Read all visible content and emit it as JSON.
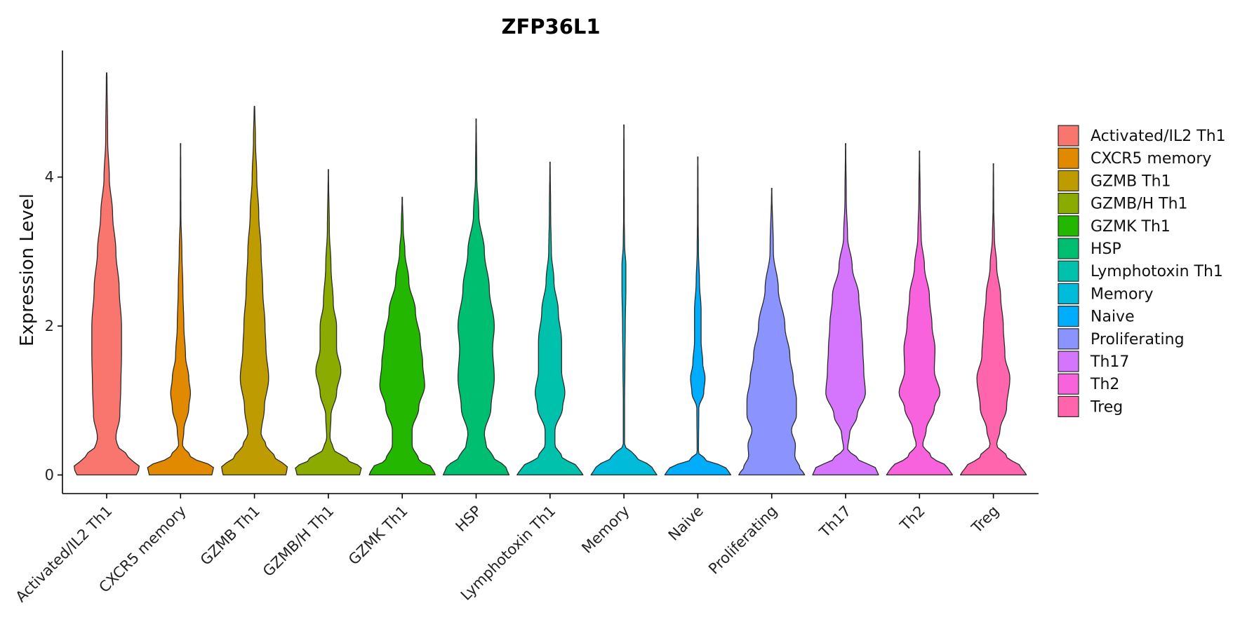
{
  "chart_data": {
    "type": "violin",
    "title": "ZFP36L1",
    "xlabel": "",
    "ylabel": "Expression Level",
    "ylim": [
      -0.25,
      5.7
    ],
    "y_ticks": [
      0,
      2,
      4
    ],
    "y_tick_labels": [
      "0",
      "2",
      "4"
    ],
    "grid": false,
    "legend_position": "right",
    "categories": [
      "Activated/IL2 Th1",
      "CXCR5 memory",
      "GZMB Th1",
      "GZMB/H Th1",
      "GZMK Th1",
      "HSP",
      "Lymphotoxin Th1",
      "Memory",
      "Naive",
      "Proliferating",
      "Th17",
      "Th2",
      "Treg"
    ],
    "colors": [
      "#F8766D",
      "#E18A00",
      "#BE9C00",
      "#8CAB00",
      "#24B700",
      "#00BE70",
      "#00C1AB",
      "#00BBDA",
      "#00ACFC",
      "#8B93FF",
      "#D575FE",
      "#F962DD",
      "#FF65AC"
    ],
    "max_values": [
      5.4,
      4.45,
      4.95,
      4.1,
      3.73,
      4.78,
      4.2,
      4.7,
      4.27,
      3.85,
      4.45,
      4.35,
      4.18
    ],
    "density_profiles": [
      [
        [
          0,
          0.9
        ],
        [
          0.1,
          1
        ],
        [
          0.25,
          0.65
        ],
        [
          0.4,
          0.32
        ],
        [
          0.5,
          0.28
        ],
        [
          0.8,
          0.4
        ],
        [
          1.2,
          0.43
        ],
        [
          1.6,
          0.45
        ],
        [
          2,
          0.45
        ],
        [
          2.5,
          0.38
        ],
        [
          3,
          0.28
        ],
        [
          3.5,
          0.18
        ],
        [
          4,
          0.08
        ],
        [
          4.5,
          0.03
        ],
        [
          5.4,
          0.01
        ]
      ],
      [
        [
          0,
          0.95
        ],
        [
          0.1,
          1
        ],
        [
          0.25,
          0.3
        ],
        [
          0.4,
          0.06
        ],
        [
          0.6,
          0.1
        ],
        [
          0.9,
          0.25
        ],
        [
          1.1,
          0.3
        ],
        [
          1.3,
          0.25
        ],
        [
          1.6,
          0.15
        ],
        [
          2,
          0.1
        ],
        [
          2.5,
          0.07
        ],
        [
          3,
          0.04
        ],
        [
          3.5,
          0.01
        ],
        [
          4.45,
          0.005
        ]
      ],
      [
        [
          0,
          0.95
        ],
        [
          0.1,
          1
        ],
        [
          0.25,
          0.6
        ],
        [
          0.4,
          0.35
        ],
        [
          0.55,
          0.2
        ],
        [
          0.9,
          0.3
        ],
        [
          1.3,
          0.43
        ],
        [
          1.7,
          0.35
        ],
        [
          2,
          0.32
        ],
        [
          2.5,
          0.25
        ],
        [
          3,
          0.2
        ],
        [
          3.5,
          0.13
        ],
        [
          4,
          0.07
        ],
        [
          4.5,
          0.03
        ],
        [
          4.95,
          0.01
        ]
      ],
      [
        [
          0,
          0.95
        ],
        [
          0.1,
          1
        ],
        [
          0.2,
          0.6
        ],
        [
          0.35,
          0.15
        ],
        [
          0.5,
          0.05
        ],
        [
          0.8,
          0.08
        ],
        [
          1.1,
          0.25
        ],
        [
          1.4,
          0.38
        ],
        [
          1.7,
          0.25
        ],
        [
          2,
          0.25
        ],
        [
          2.3,
          0.15
        ],
        [
          2.8,
          0.08
        ],
        [
          3.3,
          0.03
        ],
        [
          4.1,
          0.005
        ]
      ],
      [
        [
          0,
          1
        ],
        [
          0.1,
          0.9
        ],
        [
          0.2,
          0.5
        ],
        [
          0.4,
          0.3
        ],
        [
          0.6,
          0.3
        ],
        [
          0.9,
          0.5
        ],
        [
          1.2,
          0.68
        ],
        [
          1.5,
          0.62
        ],
        [
          1.8,
          0.55
        ],
        [
          2.2,
          0.4
        ],
        [
          2.6,
          0.2
        ],
        [
          3,
          0.08
        ],
        [
          3.3,
          0.03
        ],
        [
          3.73,
          0.005
        ]
      ],
      [
        [
          0,
          1
        ],
        [
          0.1,
          0.9
        ],
        [
          0.25,
          0.5
        ],
        [
          0.4,
          0.3
        ],
        [
          0.55,
          0.25
        ],
        [
          0.9,
          0.45
        ],
        [
          1.3,
          0.55
        ],
        [
          1.7,
          0.5
        ],
        [
          2,
          0.55
        ],
        [
          2.5,
          0.4
        ],
        [
          3,
          0.25
        ],
        [
          3.5,
          0.08
        ],
        [
          4,
          0.02
        ],
        [
          4.78,
          0.005
        ]
      ],
      [
        [
          0,
          1
        ],
        [
          0.1,
          0.85
        ],
        [
          0.25,
          0.35
        ],
        [
          0.4,
          0.15
        ],
        [
          0.6,
          0.15
        ],
        [
          0.9,
          0.38
        ],
        [
          1.1,
          0.45
        ],
        [
          1.4,
          0.35
        ],
        [
          1.8,
          0.35
        ],
        [
          2.2,
          0.25
        ],
        [
          2.6,
          0.12
        ],
        [
          3,
          0.04
        ],
        [
          3.5,
          0.02
        ],
        [
          4.2,
          0.005
        ]
      ],
      [
        [
          0,
          1
        ],
        [
          0.1,
          0.85
        ],
        [
          0.25,
          0.35
        ],
        [
          0.4,
          0.02
        ],
        [
          1,
          0.02
        ],
        [
          1.5,
          0.03
        ],
        [
          2,
          0.04
        ],
        [
          2.5,
          0.06
        ],
        [
          2.8,
          0.06
        ],
        [
          3.1,
          0.02
        ],
        [
          3.5,
          0.01
        ],
        [
          4.7,
          0.005
        ]
      ],
      [
        [
          0,
          1
        ],
        [
          0.1,
          0.85
        ],
        [
          0.2,
          0.25
        ],
        [
          0.3,
          0.02
        ],
        [
          0.9,
          0.03
        ],
        [
          1.1,
          0.18
        ],
        [
          1.3,
          0.22
        ],
        [
          1.5,
          0.15
        ],
        [
          1.8,
          0.1
        ],
        [
          2.2,
          0.1
        ],
        [
          2.6,
          0.05
        ],
        [
          3,
          0.02
        ],
        [
          3.5,
          0.01
        ],
        [
          4.27,
          0.005
        ]
      ],
      [
        [
          0,
          1
        ],
        [
          0.1,
          0.85
        ],
        [
          0.25,
          0.7
        ],
        [
          0.4,
          0.72
        ],
        [
          0.6,
          0.6
        ],
        [
          0.8,
          0.75
        ],
        [
          1,
          0.75
        ],
        [
          1.3,
          0.65
        ],
        [
          1.6,
          0.55
        ],
        [
          2,
          0.4
        ],
        [
          2.5,
          0.2
        ],
        [
          3,
          0.05
        ],
        [
          3.85,
          0.005
        ]
      ],
      [
        [
          0,
          1
        ],
        [
          0.1,
          0.9
        ],
        [
          0.2,
          0.4
        ],
        [
          0.35,
          0.06
        ],
        [
          0.55,
          0.12
        ],
        [
          0.8,
          0.35
        ],
        [
          1.1,
          0.6
        ],
        [
          1.4,
          0.55
        ],
        [
          1.7,
          0.52
        ],
        [
          2,
          0.48
        ],
        [
          2.4,
          0.4
        ],
        [
          2.8,
          0.2
        ],
        [
          3.2,
          0.06
        ],
        [
          3.7,
          0.02
        ],
        [
          4.45,
          0.005
        ]
      ],
      [
        [
          0,
          1
        ],
        [
          0.1,
          0.85
        ],
        [
          0.25,
          0.35
        ],
        [
          0.4,
          0.1
        ],
        [
          0.6,
          0.2
        ],
        [
          0.9,
          0.45
        ],
        [
          1.1,
          0.62
        ],
        [
          1.4,
          0.45
        ],
        [
          1.7,
          0.47
        ],
        [
          2,
          0.38
        ],
        [
          2.4,
          0.3
        ],
        [
          2.8,
          0.15
        ],
        [
          3.2,
          0.05
        ],
        [
          3.7,
          0.02
        ],
        [
          4.35,
          0.005
        ]
      ],
      [
        [
          0,
          1
        ],
        [
          0.1,
          0.85
        ],
        [
          0.25,
          0.4
        ],
        [
          0.4,
          0.1
        ],
        [
          0.6,
          0.2
        ],
        [
          0.9,
          0.4
        ],
        [
          1.3,
          0.5
        ],
        [
          1.6,
          0.35
        ],
        [
          2,
          0.3
        ],
        [
          2.4,
          0.22
        ],
        [
          2.8,
          0.1
        ],
        [
          3.2,
          0.03
        ],
        [
          3.6,
          0.01
        ],
        [
          4.18,
          0.005
        ]
      ]
    ]
  }
}
